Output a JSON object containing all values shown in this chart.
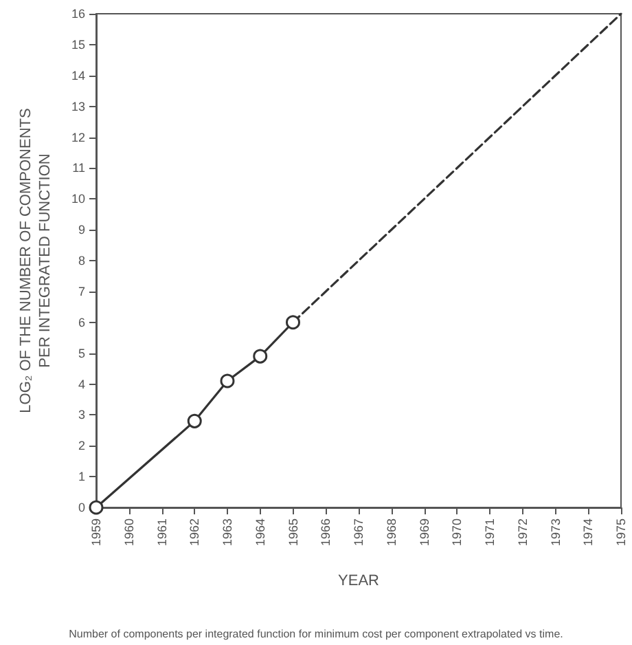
{
  "chart_data": {
    "type": "line",
    "xlabel": "YEAR",
    "ylabel": "LOG₂ OF THE NUMBER OF COMPONENTS\nPER INTEGRATED FUNCTION",
    "annotations": [
      "Number of components per integrated function for minimum cost per component extrapolated vs time."
    ],
    "series": [
      {
        "color": "#333333",
        "x": [
          1959,
          1962,
          1963,
          1964,
          1965
        ],
        "values": [
          0,
          2.8,
          4.1,
          4.9,
          6
        ],
        "marker": "circle",
        "line_style": "solid"
      },
      {
        "color": "#333333",
        "x": [
          1965,
          1975
        ],
        "values": [
          6,
          16
        ],
        "marker": "none",
        "line_style": "dashed"
      }
    ],
    "xlim": [
      1959,
      1975
    ],
    "xticks": [
      1959,
      1960,
      1961,
      1962,
      1963,
      1964,
      1965,
      1966,
      1967,
      1968,
      1969,
      1970,
      1971,
      1972,
      1973,
      1974,
      1975
    ],
    "ylim": [
      0,
      16
    ],
    "yticks": [
      0,
      1,
      2,
      3,
      4,
      5,
      6,
      7,
      8,
      9,
      10,
      11,
      12,
      13,
      14,
      15,
      16
    ],
    "grid": false
  }
}
